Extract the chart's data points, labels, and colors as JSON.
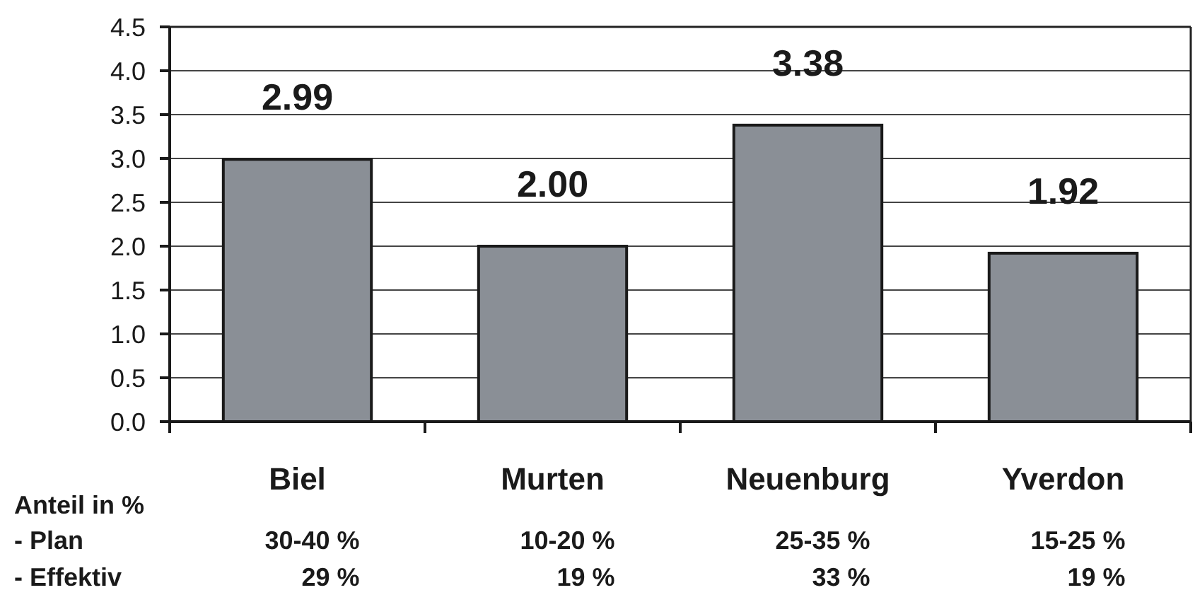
{
  "chart_data": {
    "type": "bar",
    "categories": [
      "Biel",
      "Murten",
      "Neuenburg",
      "Yverdon"
    ],
    "values": [
      2.99,
      2.0,
      3.38,
      1.92
    ],
    "color": "#8a8f96",
    "value_labels": [
      "2.99",
      "2.00",
      "3.38",
      "1.92"
    ],
    "ylim": [
      0,
      4.5
    ],
    "yticks": [
      {
        "value": 0,
        "label": "0.0"
      },
      0.5,
      {
        "value": 1,
        "label": "1.0"
      },
      1.5,
      {
        "value": 2,
        "label": "2.0"
      },
      2.5,
      {
        "value": 3,
        "label": "3.0"
      },
      3.5,
      {
        "value": 4,
        "label": "4.0"
      },
      4.5
    ],
    "grid": "y",
    "annotations": [
      "Anteil in %",
      "- Plan",
      "30-40 %",
      "10-20 %",
      "25-35 %",
      "15-25 %",
      "- Effektiv",
      "29 %",
      "19 %",
      "33 %",
      "19 %"
    ]
  }
}
